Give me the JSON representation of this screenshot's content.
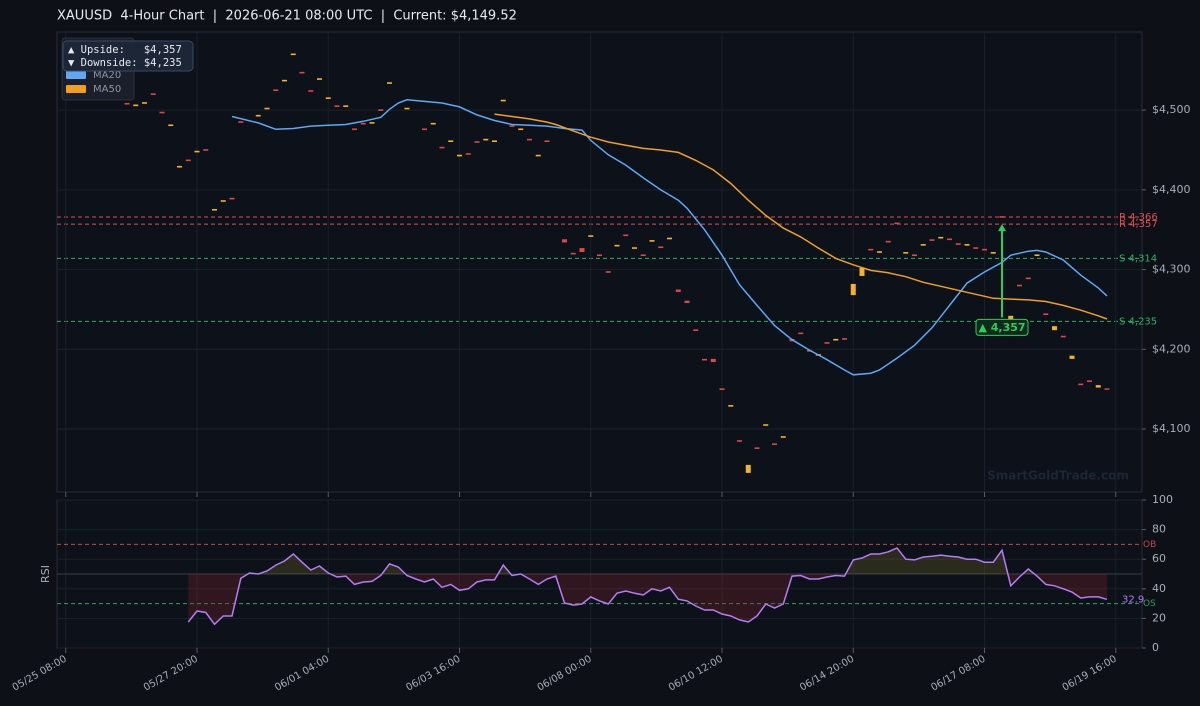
{
  "chart_data": [
    {
      "type": "candlestick",
      "title": "XAUUSD  4-Hour Chart  |  2026-06-21 08:00 UTC  |  Current: $4,149.52",
      "x": [
        7,
        8,
        9,
        10,
        11,
        12,
        13,
        14,
        15,
        16,
        17,
        18,
        19,
        20,
        22,
        23,
        24,
        25,
        26,
        27,
        28,
        29,
        30,
        31,
        32,
        33,
        34,
        35,
        36,
        37,
        39,
        41,
        42,
        43,
        44,
        45,
        46,
        47,
        48,
        49,
        50,
        51,
        52,
        53,
        54,
        55,
        57,
        58,
        59,
        60,
        61,
        62,
        63,
        64,
        65,
        66,
        67,
        68,
        69,
        70,
        71,
        72,
        73,
        74,
        75,
        76,
        77,
        78,
        79,
        80,
        81,
        82,
        83,
        84,
        85,
        86,
        87,
        88,
        89,
        90,
        91,
        92,
        93,
        94,
        95,
        96,
        97,
        98,
        99,
        100,
        101,
        102,
        103,
        104,
        105,
        106,
        107,
        108,
        109,
        110,
        111,
        112,
        113,
        114,
        115,
        116,
        117,
        118,
        119
      ],
      "open": [
        4509,
        4505,
        4508,
        4521,
        4498,
        4480,
        4428,
        4438,
        4447,
        4451,
        4374,
        4385,
        4390,
        4486,
        4492,
        4501,
        4526,
        4536,
        4569,
        4548,
        4525,
        4538,
        4514,
        4506,
        4504,
        4477,
        4484,
        4483,
        4501,
        4533,
        4501,
        4477,
        4482,
        4454,
        4460,
        4442,
        4446,
        4461,
        4462,
        4460,
        4511,
        4481,
        4475,
        4464,
        4442,
        4462,
        4338,
        4321,
        4327,
        4341,
        4319,
        4298,
        4329,
        4344,
        4326,
        4319,
        4335,
        4329,
        4338,
        4275,
        4261,
        4225,
        4188,
        4188,
        4151,
        4128,
        4086,
        4045,
        4077,
        4104,
        4082,
        4089,
        4213,
        4221,
        4199,
        4192,
        4209,
        4211,
        4214,
        4268,
        4292,
        4326,
        4321,
        4336,
        4359,
        4320,
        4319,
        4330,
        4338,
        4339,
        4339,
        4333,
        4330,
        4328,
        4326,
        4320,
        4367,
        4237,
        4281,
        4290,
        4317,
        4245,
        4224,
        4217,
        4188,
        4157,
        4161,
        4152,
        4151
      ],
      "close": [
        4507,
        4507,
        4510,
        4519,
        4496,
        4482,
        4430,
        4436,
        4449,
        4449,
        4376,
        4387,
        4388,
        4484,
        4494,
        4503,
        4524,
        4538,
        4571,
        4546,
        4523,
        4540,
        4516,
        4504,
        4506,
        4475,
        4482,
        4485,
        4499,
        4535,
        4503,
        4475,
        4484,
        4452,
        4462,
        4444,
        4444,
        4459,
        4464,
        4462,
        4513,
        4479,
        4477,
        4462,
        4444,
        4460,
        4334,
        4319,
        4322,
        4343,
        4317,
        4296,
        4331,
        4342,
        4328,
        4317,
        4337,
        4327,
        4340,
        4272,
        4258,
        4223,
        4186,
        4184,
        4149,
        4130,
        4084,
        4055,
        4075,
        4106,
        4080,
        4091,
        4210,
        4219,
        4197,
        4194,
        4207,
        4213,
        4212,
        4282,
        4302,
        4324,
        4323,
        4334,
        4357,
        4322,
        4317,
        4332,
        4336,
        4341,
        4337,
        4331,
        4332,
        4326,
        4324,
        4322,
        4365,
        4242,
        4279,
        4288,
        4319,
        4243,
        4229,
        4215,
        4192,
        4155,
        4159,
        4155,
        4149.52
      ],
      "up_color": "#f5b325",
      "down_color": "#e04848",
      "overlays": [
        {
          "name": "MA20",
          "color": "#5ea8f5",
          "x": [
            19,
            22,
            24,
            26,
            28,
            30,
            32,
            34,
            36,
            37,
            38,
            39,
            41,
            43,
            45,
            47,
            49,
            51,
            53,
            55,
            57,
            59,
            60,
            62,
            64,
            66,
            68,
            70,
            71,
            73,
            75,
            77,
            79,
            81,
            83,
            85,
            87,
            89,
            90,
            92,
            93,
            95,
            97,
            99,
            101,
            103,
            105,
            107,
            108,
            110,
            111,
            112,
            114,
            116,
            118,
            119
          ],
          "values": [
            4492,
            4484,
            4476,
            4477,
            4480,
            4481,
            4482,
            4486,
            4491,
            4501,
            4509,
            4513,
            4511,
            4509,
            4504,
            4494,
            4487,
            4482,
            4481,
            4480,
            4477,
            4475,
            4462,
            4444,
            4431,
            4415,
            4400,
            4387,
            4377,
            4350,
            4318,
            4281,
            4255,
            4230,
            4212,
            4199,
            4187,
            4174,
            4168,
            4170,
            4174,
            4189,
            4205,
            4227,
            4255,
            4283,
            4297,
            4309,
            4318,
            4323,
            4324,
            4322,
            4312,
            4293,
            4277,
            4267
          ]
        },
        {
          "name": "MA50",
          "color": "#f0a020",
          "x": [
            49,
            51,
            53,
            55,
            56,
            58,
            60,
            62,
            64,
            66,
            68,
            70,
            72,
            74,
            76,
            78,
            80,
            82,
            84,
            86,
            88,
            90,
            92,
            94,
            96,
            98,
            100,
            102,
            104,
            106,
            108,
            110,
            112,
            114,
            116,
            118,
            119
          ],
          "values": [
            4495,
            4492,
            4489,
            4485,
            4482,
            4474,
            4466,
            4460,
            4456,
            4452,
            4450,
            4447,
            4437,
            4425,
            4408,
            4387,
            4368,
            4352,
            4341,
            4327,
            4314,
            4306,
            4299,
            4296,
            4291,
            4284,
            4279,
            4274,
            4269,
            4264,
            4263,
            4262,
            4260,
            4255,
            4249,
            4242,
            4238
          ]
        }
      ],
      "levels": [
        {
          "label": "R 4,366",
          "value": 4366,
          "color": "#e05050"
        },
        {
          "label": "R 4,357",
          "value": 4357,
          "color": "#e05050"
        },
        {
          "label": "S 4,314",
          "value": 4314,
          "color": "#30b060"
        },
        {
          "label": "S 4,235",
          "value": 4235,
          "color": "#30b060"
        }
      ],
      "annotation": {
        "label": "▲ 4,357",
        "x": 107,
        "from": 4240,
        "to": 4357,
        "color": "#2ecc5e"
      },
      "info_box": [
        "▲ Upside:   $4,357",
        "▼ Downside: $4,235"
      ],
      "watermark": "SmartGoldTrade.com",
      "xlim": [
        -1,
        123
      ],
      "ylim": [
        4021,
        4598
      ],
      "yticks": [
        {
          "value": 4100,
          "label": "$4,100"
        },
        {
          "value": 4200,
          "label": "$4,200"
        },
        {
          "value": 4300,
          "label": "$4,300"
        },
        {
          "value": 4400,
          "label": "$4,400"
        },
        {
          "value": 4500,
          "label": "$4,500"
        }
      ],
      "grid": true
    },
    {
      "type": "line",
      "ylabel": "RSI",
      "x": [
        14,
        15,
        16,
        17,
        18,
        19,
        20,
        21,
        22,
        23,
        24,
        25,
        26,
        27,
        28,
        29,
        30,
        31,
        32,
        33,
        34,
        35,
        36,
        37,
        38,
        39,
        40,
        41,
        42,
        43,
        44,
        45,
        46,
        47,
        48,
        49,
        50,
        51,
        52,
        53,
        54,
        55,
        56,
        57,
        58,
        59,
        60,
        61,
        62,
        63,
        64,
        65,
        66,
        67,
        68,
        69,
        70,
        71,
        72,
        73,
        74,
        75,
        76,
        77,
        78,
        79,
        80,
        81,
        82,
        83,
        84,
        85,
        86,
        87,
        88,
        89,
        90,
        91,
        92,
        93,
        94,
        95,
        96,
        97,
        98,
        99,
        100,
        101,
        102,
        103,
        104,
        105,
        106,
        107,
        108,
        109,
        110,
        111,
        112,
        113,
        114,
        115,
        116,
        117,
        118,
        119
      ],
      "series": [
        {
          "color": "#b57cf5",
          "end_label": "32.9",
          "values": [
            17.6,
            25,
            24,
            16,
            21.6,
            21.6,
            47,
            50.7,
            50,
            52,
            56,
            58.8,
            63.5,
            58,
            52.7,
            55.4,
            50.7,
            48,
            48.6,
            43,
            44.6,
            45,
            49,
            56.8,
            54.7,
            49,
            46.6,
            44.6,
            46.6,
            41,
            43,
            39,
            40,
            44.6,
            46,
            46,
            56,
            49,
            50,
            46.6,
            43,
            46.6,
            48.6,
            30.4,
            29,
            29.7,
            34.5,
            31.8,
            29.7,
            37,
            38.5,
            37,
            35.8,
            40,
            38.5,
            41,
            33,
            31.8,
            28.4,
            25.7,
            25.7,
            23,
            21.6,
            19,
            17.6,
            21.6,
            29.7,
            27,
            29.7,
            48.6,
            49,
            46.6,
            46.6,
            48,
            49,
            48.6,
            59.5,
            60.8,
            63.5,
            63.5,
            65,
            67.6,
            60,
            59.5,
            61.5,
            62,
            62.8,
            62,
            61.5,
            60,
            60,
            58,
            58,
            66,
            42,
            48,
            53.4,
            48.6,
            43,
            42,
            40,
            37.8,
            33.8,
            34.5,
            34.5,
            32.9
          ]
        }
      ],
      "midline": 50,
      "levels": [
        {
          "label": "OB",
          "value": 70,
          "color": "#c04848"
        },
        {
          "label": "OS",
          "value": 30,
          "color": "#30a058"
        }
      ],
      "xlim": [
        -1,
        123
      ],
      "ylim": [
        0,
        100
      ],
      "yticks": [
        0,
        20,
        40,
        60,
        80,
        100
      ],
      "xticks": [
        {
          "value": 0,
          "label": "05/25 08:00"
        },
        {
          "value": 15,
          "label": "05/27 20:00"
        },
        {
          "value": 30,
          "label": "06/01 04:00"
        },
        {
          "value": 45,
          "label": "06/03 16:00"
        },
        {
          "value": 60,
          "label": "06/08 00:00"
        },
        {
          "value": 75,
          "label": "06/10 12:00"
        },
        {
          "value": 90,
          "label": "06/14 20:00"
        },
        {
          "value": 105,
          "label": "06/17 08:00"
        },
        {
          "value": 120,
          "label": "06/19 16:00"
        }
      ],
      "grid": true
    }
  ]
}
